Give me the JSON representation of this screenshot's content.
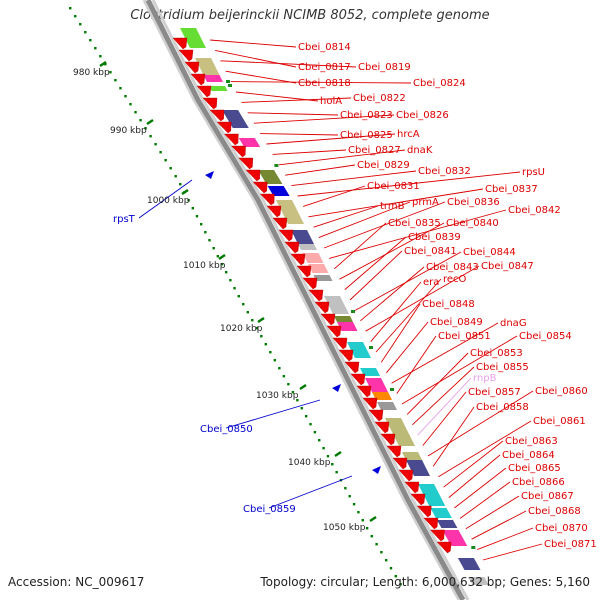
{
  "title": "Clostridium beijerinckii NCIMB 8052, complete genome",
  "accession": "Accession: NC_009617",
  "topology": "Topology: circular; Length: 6,000,632 bp; Genes: 5,160",
  "colors": {
    "gene_label": "#dd0000",
    "gene_label_minus": "#0000cc",
    "pseudo_label": "#e8a0e8",
    "tick_dots": "#007a00",
    "tick_text": "#222222",
    "arrow_fill": "#ee0000",
    "backbone_dark": "#8a8a8a",
    "backbone_light": "#d0d0d0"
  },
  "axis_ticks": [
    "980 kbp",
    "990 kbp",
    "1000 kbp",
    "1010 kbp",
    "1020 kbp",
    "1030 kbp",
    "1040 kbp",
    "1050 kbp"
  ],
  "plus_labels": [
    "Cbei_0814",
    "Cbei_0817",
    "Cbei_0819",
    "Cbei_0818",
    "Cbei_0824",
    "holA",
    "Cbei_0822",
    "Cbei_0823",
    "Cbei_0826",
    "Cbei_0825",
    "hrcA",
    "Cbei_0827",
    "dnaK",
    "Cbei_0829",
    "Cbei_0832",
    "rpsU",
    "Cbei_0831",
    "Cbei_0837",
    "trmB",
    "prmA",
    "Cbei_0836",
    "Cbei_0842",
    "Cbei_0835",
    "Cbei_0840",
    "Cbei_0839",
    "Cbei_0841",
    "Cbei_0844",
    "Cbei_0843",
    "Cbei_0847",
    "era",
    "recO",
    "Cbei_0848",
    "Cbei_0849",
    "dnaG",
    "Cbei_0851",
    "Cbei_0854",
    "Cbei_0853",
    "Cbei_0855",
    "rnpB",
    "Cbei_0857",
    "Cbei_0860",
    "Cbei_0858",
    "Cbei_0861",
    "Cbei_0863",
    "Cbei_0864",
    "Cbei_0865",
    "Cbei_0866",
    "Cbei_0867",
    "Cbei_0868",
    "Cbei_0870",
    "Cbei_0871"
  ],
  "minus_labels": [
    "rpsT",
    "Cbei_0850",
    "Cbei_0859"
  ]
}
